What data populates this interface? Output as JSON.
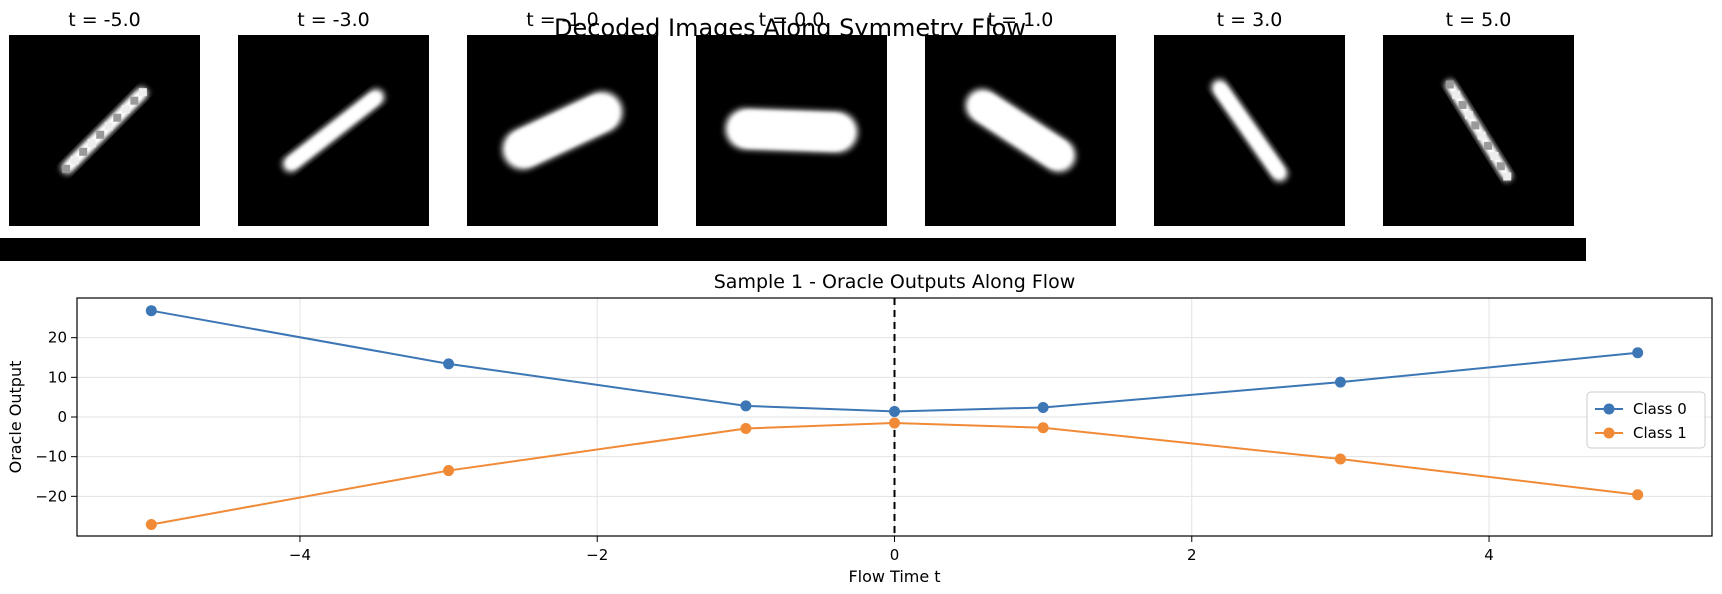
{
  "figure": {
    "suptitle": "Decoded Images Along Symmetry Flow"
  },
  "image_strip": {
    "frames": [
      {
        "title": "t = -5.0",
        "t": -5.0,
        "angle_deg": -45,
        "length": 0.62,
        "thickness": 0.07,
        "pixelated": true
      },
      {
        "title": "t = -3.0",
        "t": -3.0,
        "angle_deg": -38,
        "length": 0.66,
        "thickness": 0.09,
        "pixelated": false
      },
      {
        "title": "t = -1.0",
        "t": -1.0,
        "angle_deg": -25,
        "length": 0.68,
        "thickness": 0.22,
        "pixelated": false
      },
      {
        "title": "t = 0.0",
        "t": 0.0,
        "angle_deg": 2,
        "length": 0.7,
        "thickness": 0.22,
        "pixelated": false
      },
      {
        "title": "t = 1.0",
        "t": 1.0,
        "angle_deg": 33,
        "length": 0.66,
        "thickness": 0.18,
        "pixelated": false
      },
      {
        "title": "t = 3.0",
        "t": 3.0,
        "angle_deg": 55,
        "length": 0.64,
        "thickness": 0.09,
        "pixelated": false
      },
      {
        "title": "t = 5.0",
        "t": 5.0,
        "angle_deg": 58,
        "length": 0.62,
        "thickness": 0.06,
        "pixelated": true
      }
    ]
  },
  "chart_data": {
    "type": "line",
    "title": "Sample 1 - Oracle Outputs Along Flow",
    "xlabel": "Flow Time t",
    "ylabel": "Oracle Output",
    "xlim": [
      -5.5,
      5.5
    ],
    "ylim": [
      -30,
      30
    ],
    "xticks": [
      -4,
      -2,
      0,
      2,
      4
    ],
    "xtick_labels": [
      "−4",
      "−2",
      "0",
      "2",
      "4"
    ],
    "yticks": [
      -20,
      -10,
      0,
      10,
      20
    ],
    "ytick_labels": [
      "−20",
      "−10",
      "0",
      "10",
      "20"
    ],
    "grid": true,
    "legend_placement": "center-right",
    "vline": {
      "x": 0,
      "style": "dashed",
      "color": "#000000"
    },
    "x": [
      -5,
      -3,
      -1,
      0,
      1,
      3,
      5
    ],
    "series": [
      {
        "name": "Class 0",
        "color": "#3d76b5",
        "values": [
          26.8,
          13.4,
          2.8,
          1.4,
          2.4,
          8.8,
          16.2
        ]
      },
      {
        "name": "Class 1",
        "color": "#f08a36",
        "values": [
          -27.1,
          -13.5,
          -2.9,
          -1.5,
          -2.7,
          -10.6,
          -19.6
        ]
      }
    ]
  }
}
